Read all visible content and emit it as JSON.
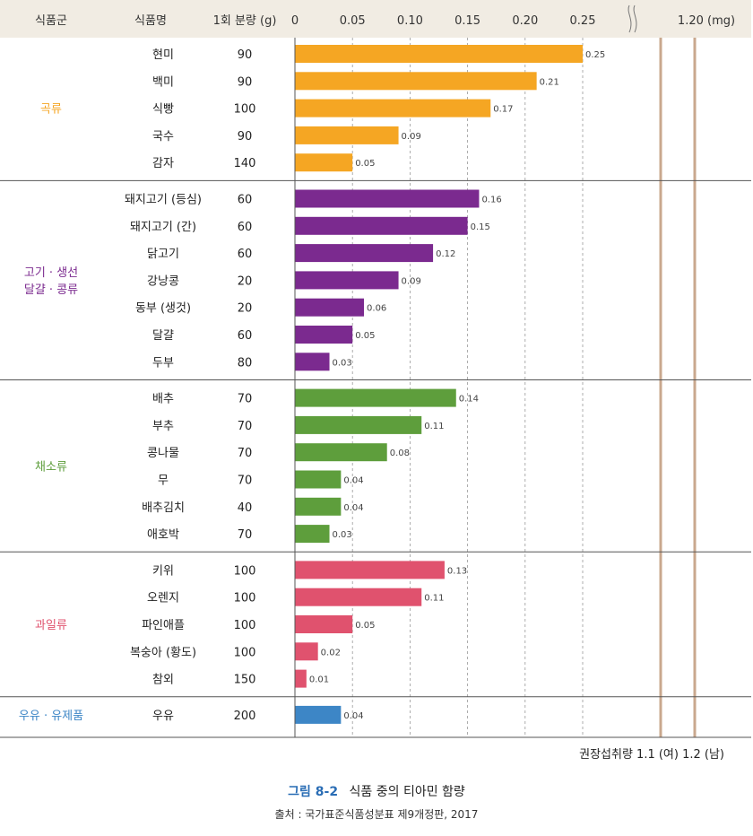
{
  "header": {
    "group_col": "식품군",
    "food_col": "식품명",
    "serving_col": "1회 분량 (g)",
    "ticks": [
      "0",
      "0.05",
      "0.10",
      "0.15",
      "0.20",
      "0.25"
    ],
    "tick_values": [
      0,
      0.05,
      0.1,
      0.15,
      0.2,
      0.25
    ],
    "break_tick": "1.20 (mg)"
  },
  "chart_data": {
    "type": "bar",
    "orientation": "horizontal",
    "unit": "mg",
    "xlim": [
      0,
      0.25
    ],
    "grid": true,
    "groups": [
      {
        "name": "곡류",
        "color": "#f5a623",
        "items": [
          {
            "food": "현미",
            "serving": "90",
            "value": 0.25,
            "label": "0.25"
          },
          {
            "food": "백미",
            "serving": "90",
            "value": 0.21,
            "label": "0.21"
          },
          {
            "food": "식빵",
            "serving": "100",
            "value": 0.17,
            "label": "0.17"
          },
          {
            "food": "국수",
            "serving": "90",
            "value": 0.09,
            "label": "0.09"
          },
          {
            "food": "감자",
            "serving": "140",
            "value": 0.05,
            "label": "0.05"
          }
        ]
      },
      {
        "name": "고기 · 생선\n달걀 · 콩류",
        "color": "#7b2a8f",
        "items": [
          {
            "food": "돼지고기 (등심)",
            "serving": "60",
            "value": 0.16,
            "label": "0.16"
          },
          {
            "food": "돼지고기 (간)",
            "serving": "60",
            "value": 0.15,
            "label": "0.15"
          },
          {
            "food": "닭고기",
            "serving": "60",
            "value": 0.12,
            "label": "0.12"
          },
          {
            "food": "강낭콩",
            "serving": "20",
            "value": 0.09,
            "label": "0.09"
          },
          {
            "food": "동부 (생것)",
            "serving": "20",
            "value": 0.06,
            "label": "0.06"
          },
          {
            "food": "달걀",
            "serving": "60",
            "value": 0.05,
            "label": "0.05"
          },
          {
            "food": "두부",
            "serving": "80",
            "value": 0.03,
            "label": "0.03"
          }
        ]
      },
      {
        "name": "채소류",
        "color": "#5e9e3c",
        "items": [
          {
            "food": "배추",
            "serving": "70",
            "value": 0.14,
            "label": "0.14"
          },
          {
            "food": "부추",
            "serving": "70",
            "value": 0.11,
            "label": "0.11"
          },
          {
            "food": "콩나물",
            "serving": "70",
            "value": 0.08,
            "label": "0.08"
          },
          {
            "food": "무",
            "serving": "70",
            "value": 0.04,
            "label": "0.04"
          },
          {
            "food": "배추김치",
            "serving": "40",
            "value": 0.04,
            "label": "0.04"
          },
          {
            "food": "애호박",
            "serving": "70",
            "value": 0.03,
            "label": "0.03"
          }
        ]
      },
      {
        "name": "과일류",
        "color": "#e0526e",
        "items": [
          {
            "food": "키위",
            "serving": "100",
            "value": 0.13,
            "label": "0.13"
          },
          {
            "food": "오렌지",
            "serving": "100",
            "value": 0.11,
            "label": "0.11"
          },
          {
            "food": "파인애플",
            "serving": "100",
            "value": 0.05,
            "label": "0.05"
          },
          {
            "food": "복숭아 (황도)",
            "serving": "100",
            "value": 0.02,
            "label": "0.02"
          },
          {
            "food": "참외",
            "serving": "150",
            "value": 0.01,
            "label": "0.01"
          }
        ]
      },
      {
        "name": "우유 · 유제품",
        "color": "#3d86c6",
        "items": [
          {
            "food": "우유",
            "serving": "200",
            "value": 0.04,
            "label": "0.04"
          }
        ]
      }
    ],
    "reference_lines": [
      1.1,
      1.2
    ]
  },
  "footer": {
    "recommended_note": "권장섭취량 1.1 (여) 1.2 (남)",
    "figure_number": "그림 8-2",
    "figure_title": "식품 중의 티아민 함량",
    "source": "출처 : 국가표준식품성분표 제9개정판, 2017"
  },
  "colors": {
    "header_bg": "#f1ece3",
    "divider": "#555555",
    "grid": "#999999",
    "reference_line": "#c9a88e",
    "caption_blue": "#2a6db5"
  }
}
